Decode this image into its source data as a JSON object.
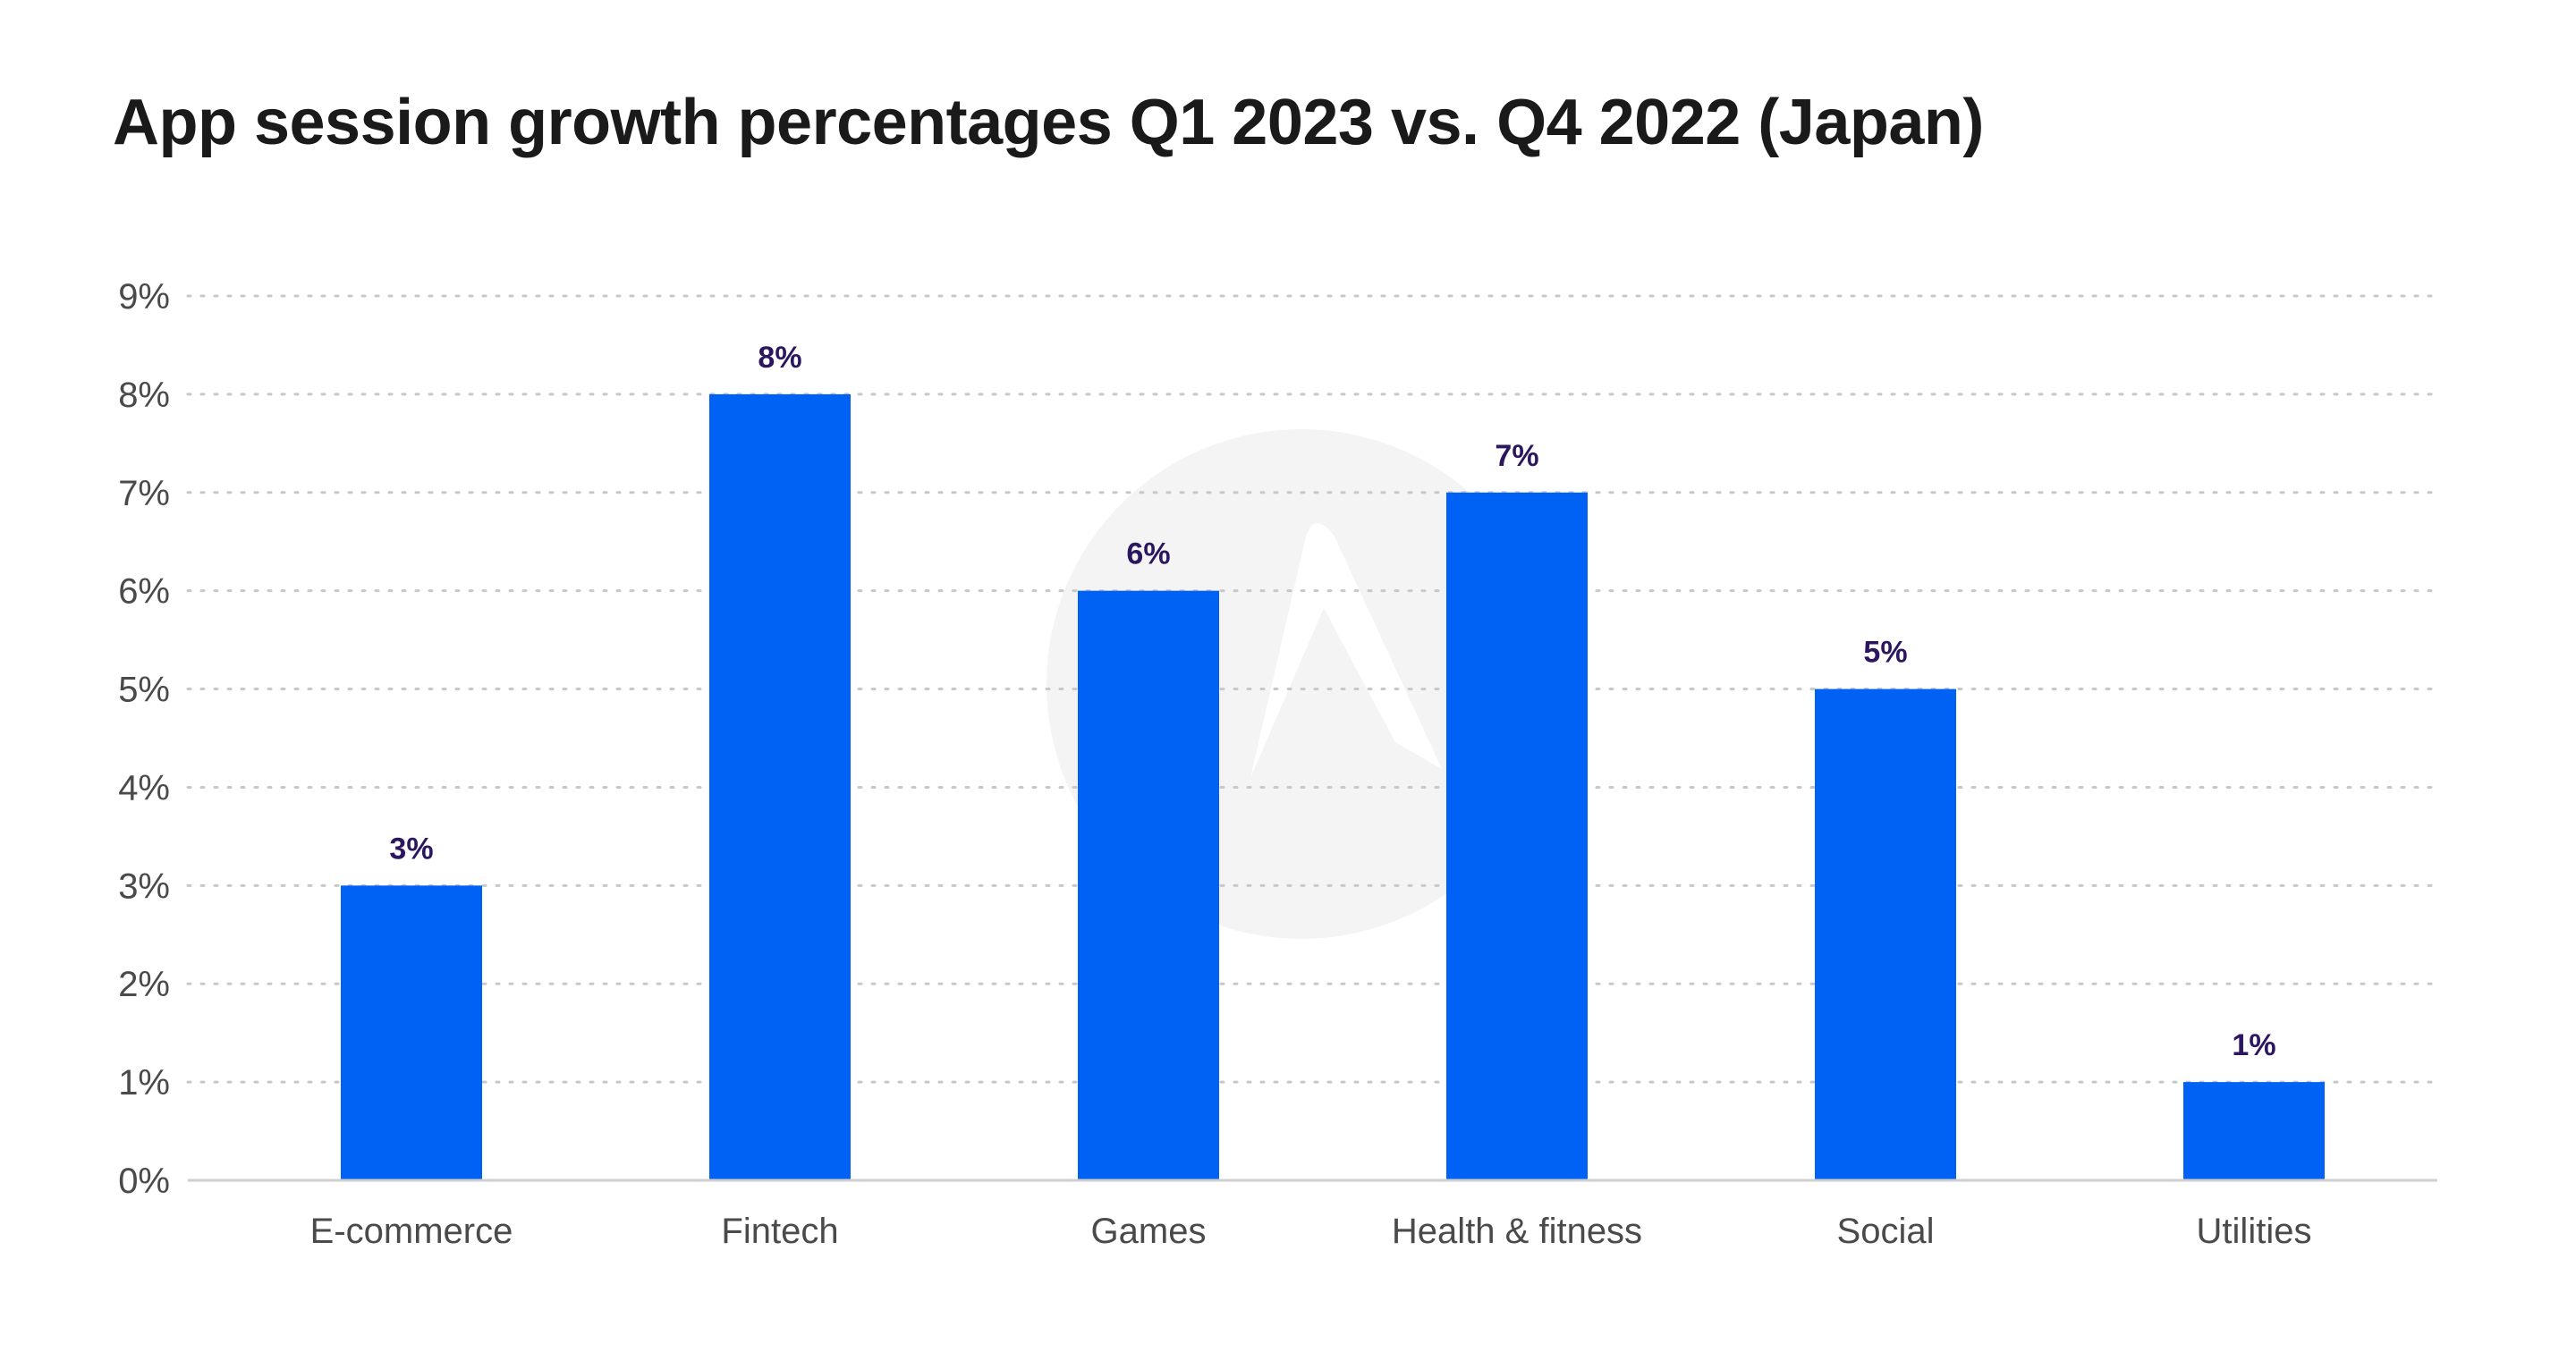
{
  "chart_data": {
    "type": "bar",
    "title": "App session growth percentages Q1 2023 vs. Q4 2022 (Japan)",
    "xlabel": "",
    "ylabel": "",
    "categories": [
      "E-commerce",
      "Fintech",
      "Games",
      "Health & fitness",
      "Social",
      "Utilities"
    ],
    "values": [
      3,
      8,
      6,
      7,
      5,
      1
    ],
    "data_labels": [
      "3%",
      "8%",
      "6%",
      "7%",
      "5%",
      "1%"
    ],
    "ylim": [
      0,
      9
    ],
    "y_ticks": [
      0,
      1,
      2,
      3,
      4,
      5,
      6,
      7,
      8,
      9
    ],
    "y_tick_labels": [
      "0%",
      "1%",
      "2%",
      "3%",
      "4%",
      "5%",
      "6%",
      "7%",
      "8%",
      "9%"
    ],
    "grid": true,
    "legend": "none"
  },
  "colors": {
    "bar": "#0062f5",
    "data_label": "#2d1660",
    "watermark": "#f4f4f4"
  },
  "watermark_icon": "logo-watermark-icon"
}
